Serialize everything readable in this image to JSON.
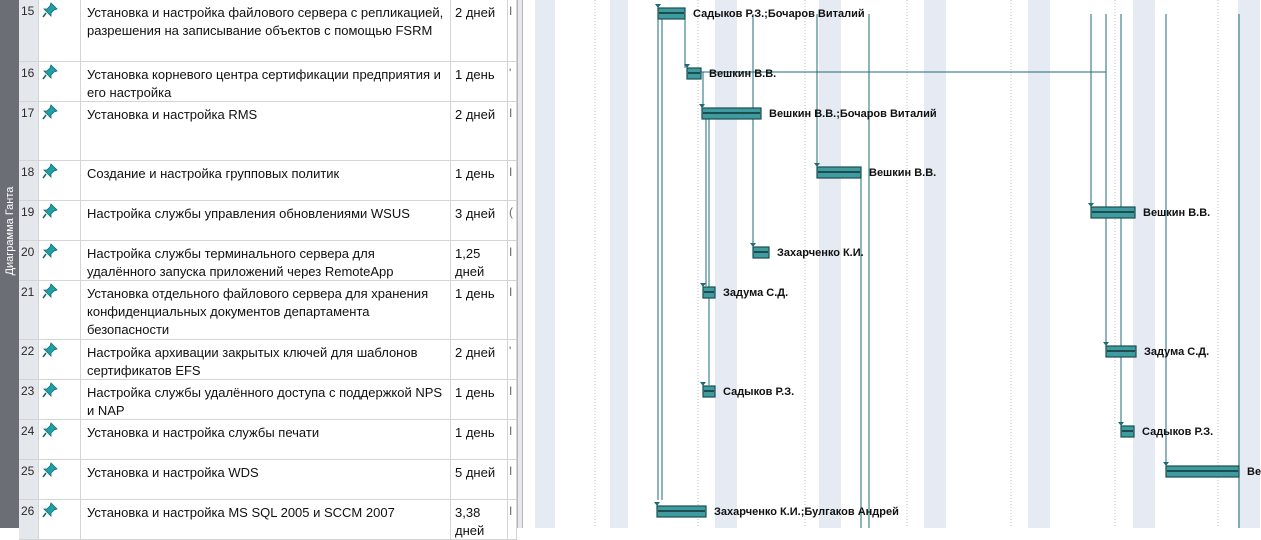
{
  "view_title": "Диаграмма Ганта",
  "colors": {
    "bar_fill": "#3e9ca0",
    "bar_border": "#1d4d4f",
    "link": "#1e6b78",
    "weekend": "#e5eaf3",
    "pin": "#1fa0a8"
  },
  "icons": {
    "indicator": "pin-icon"
  },
  "tasks": [
    {
      "id": "15",
      "name": "Установка и настройка файлового сервера с репликацией, разрешения на записывание объектов с помощью FSRM",
      "duration": "2 дней",
      "extra": "I",
      "resource": "Садыков Р.З.;Бочаров Виталий"
    },
    {
      "id": "16",
      "name": "Установка корневого центра сертификации предприятия и его настройка",
      "duration": "1 день",
      "extra": "'",
      "resource": "Вешкин В.В."
    },
    {
      "id": "17",
      "name": "Установка и настройка RMS",
      "duration": "2 дней",
      "extra": "I",
      "resource": "Вешкин В.В.;Бочаров Виталий"
    },
    {
      "id": "18",
      "name": "Создание и настройка групповых политик",
      "duration": "1 день",
      "extra": "I",
      "resource": "Вешкин В.В."
    },
    {
      "id": "19",
      "name": "Настройка службы управления обновлениями WSUS",
      "duration": "3 дней",
      "extra": "(",
      "resource": "Вешкин В.В."
    },
    {
      "id": "20",
      "name": "Настройка службы терминального сервера для удалённого запуска приложений через  RemoteApp",
      "duration": "1,25 дней",
      "extra": "I",
      "resource": "Захарченко К.И."
    },
    {
      "id": "21",
      "name": "Установка отдельного файлового сервера для хранения конфиденциальных документов департамента безопасности",
      "duration": "1 день",
      "extra": "I",
      "resource": "Задума С.Д."
    },
    {
      "id": "22",
      "name": "Настройка архивации закрытых ключей для шаблонов сертификатов EFS",
      "duration": "2 дней",
      "extra": "'",
      "resource": "Задума С.Д."
    },
    {
      "id": "23",
      "name": "Настройка службы удалённого доступа с поддержкой NPS и NAP",
      "duration": "1 день",
      "extra": "I",
      "resource": "Садыков Р.З."
    },
    {
      "id": "24",
      "name": "Установка и настройка службы печати",
      "duration": "1 день",
      "extra": "I",
      "resource": "Садыков Р.З."
    },
    {
      "id": "25",
      "name": "Установка и настройка WDS",
      "duration": "5 дней",
      "extra": "I",
      "resource": "Ве"
    },
    {
      "id": "26",
      "name": "Установка и настройка MS SQL 2005 и SCCM 2007",
      "duration": "3,38 дней",
      "extra": "I",
      "resource": "Захарченко К.И.;Булгаков Андрей"
    }
  ]
}
